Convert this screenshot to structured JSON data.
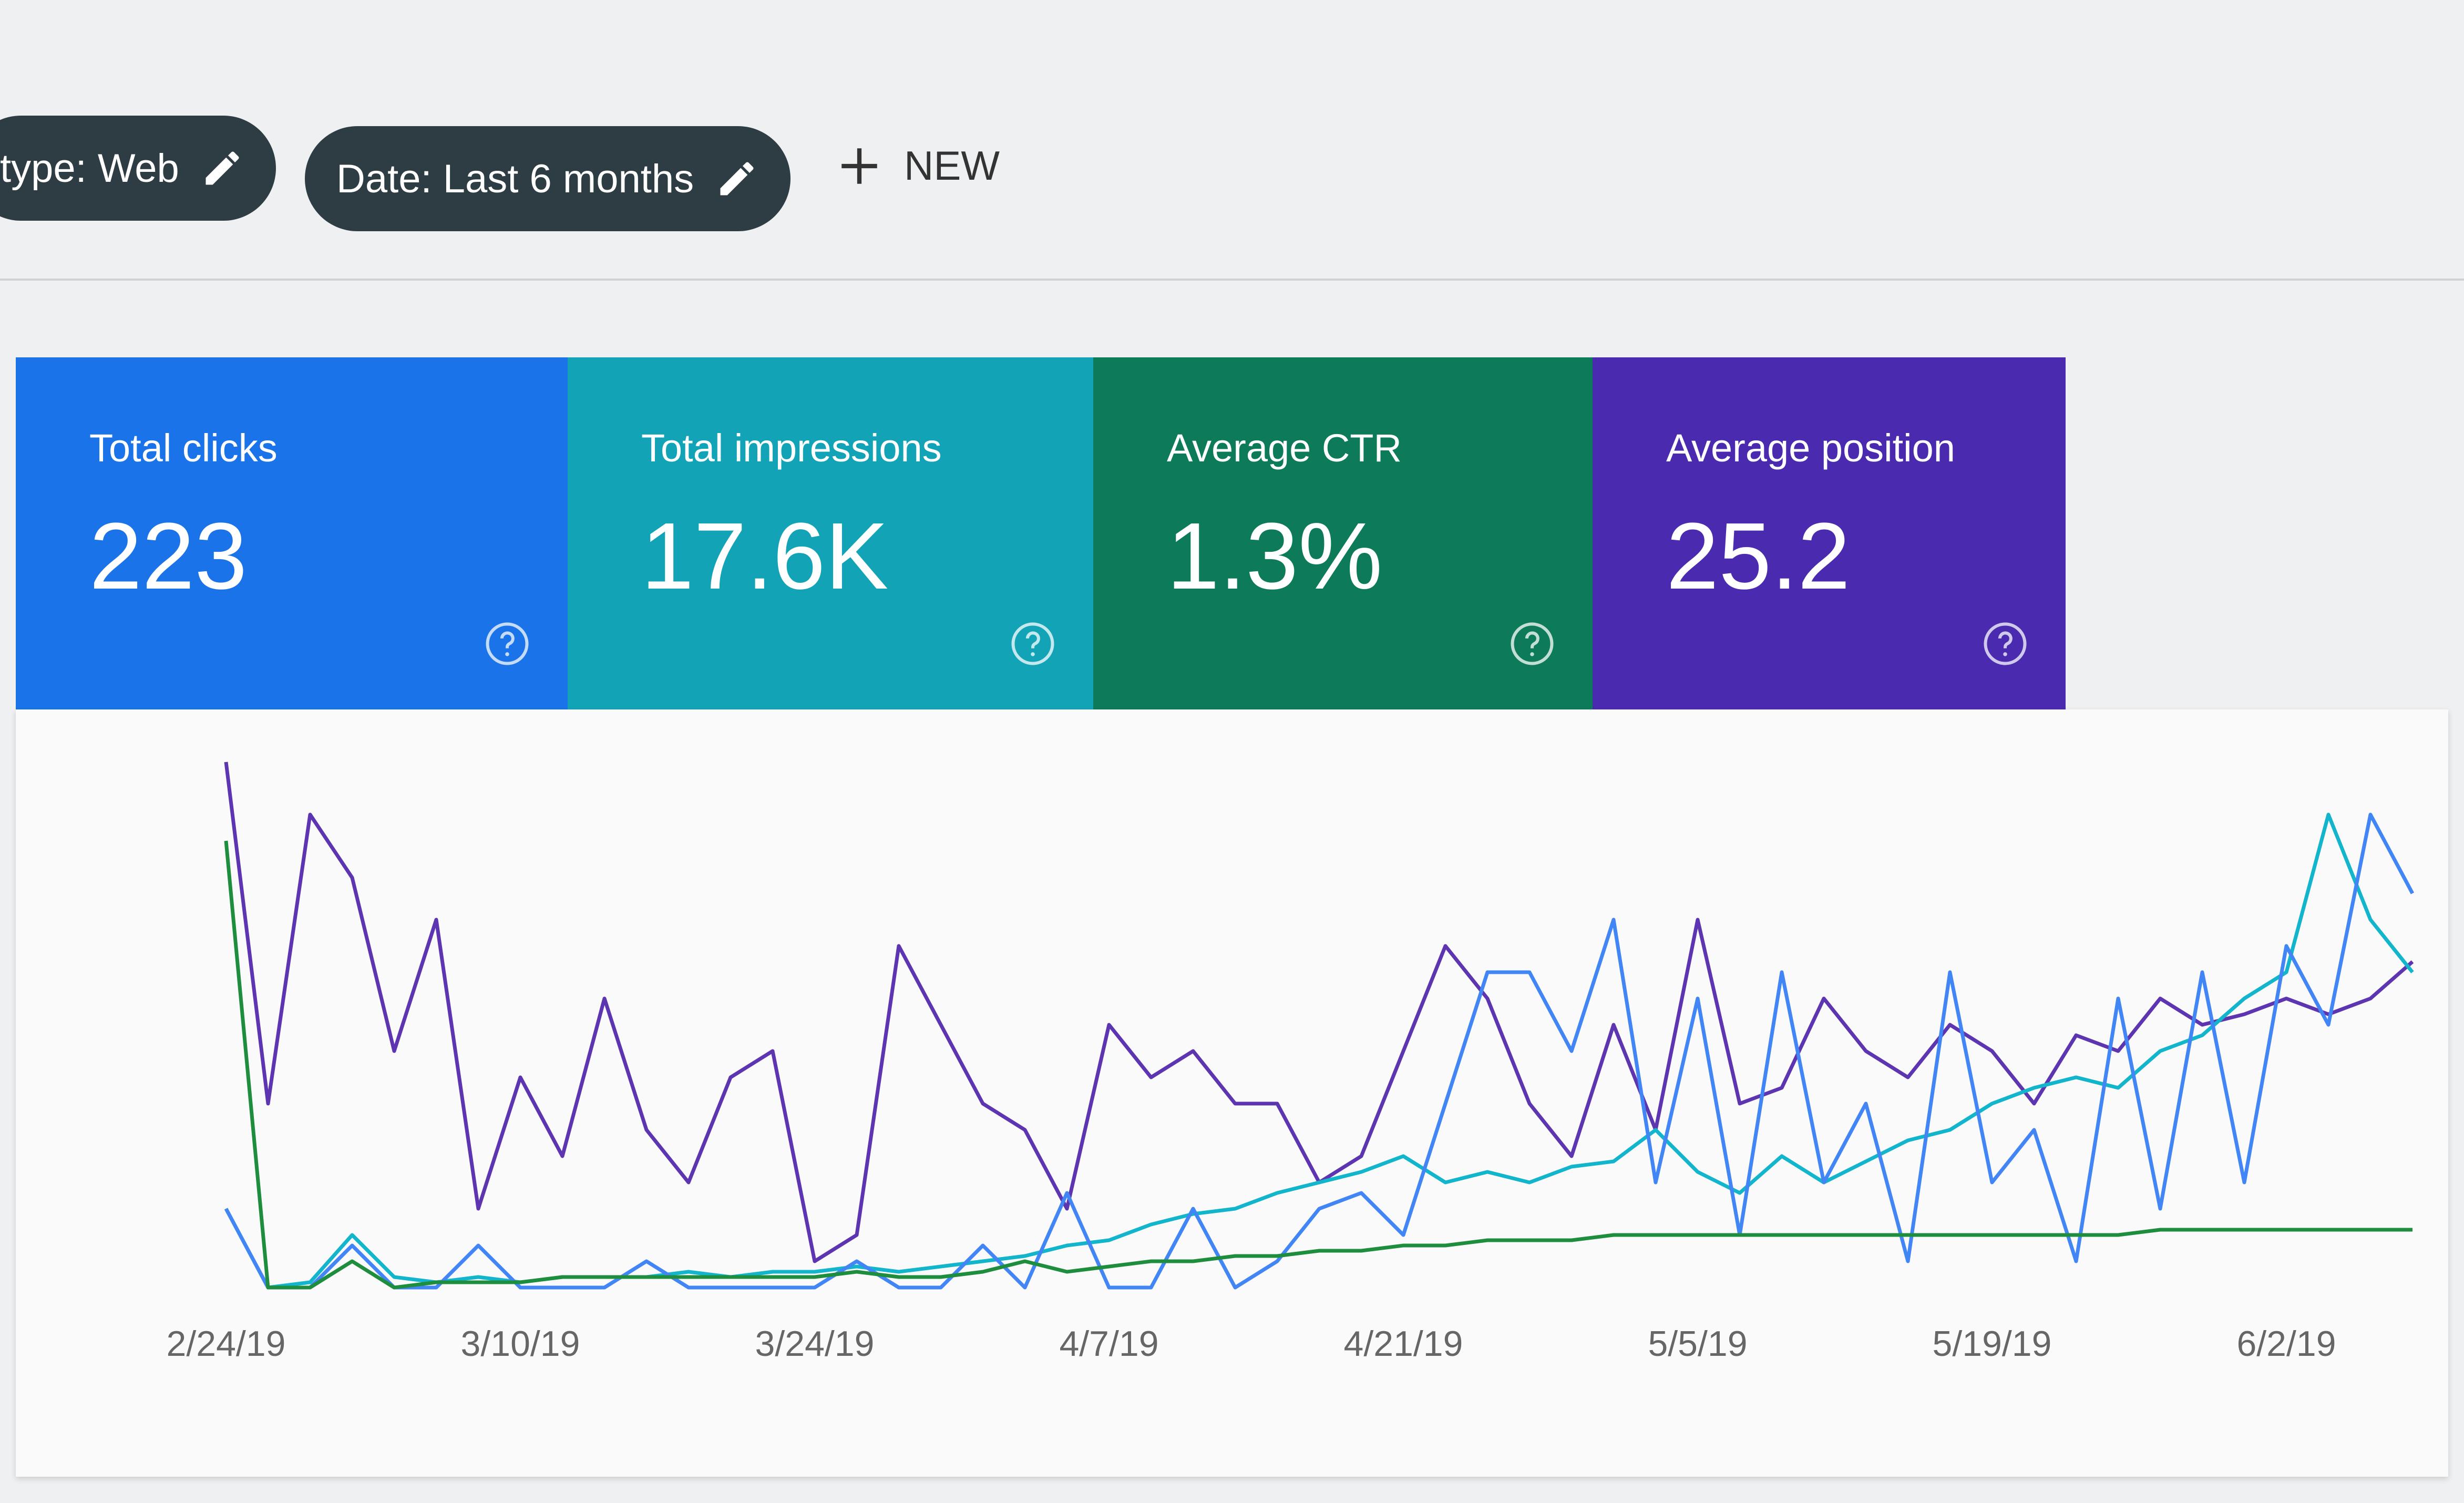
{
  "filters": {
    "chips": [
      "type: Web",
      "Date: Last 6 months"
    ],
    "new_button": "NEW"
  },
  "cards": [
    {
      "title": "Total clicks",
      "value": "223",
      "color": "#1a73e8"
    },
    {
      "title": "Total impressions",
      "value": "17.6K",
      "color": "#12a4b6"
    },
    {
      "title": "Average CTR",
      "value": "1.3%",
      "color": "#0d7b5a"
    },
    {
      "title": "Average position",
      "value": "25.2",
      "color": "#4a2bb0"
    }
  ],
  "chart_data": {
    "type": "line",
    "categories": [
      "2/24/19",
      null,
      null,
      null,
      null,
      null,
      null,
      "3/10/19",
      null,
      null,
      null,
      null,
      null,
      null,
      "3/24/19",
      null,
      null,
      null,
      null,
      null,
      null,
      "4/7/19",
      null,
      null,
      null,
      null,
      null,
      null,
      "4/21/19",
      null,
      null,
      null,
      null,
      null,
      null,
      "5/5/19",
      null,
      null,
      null,
      null,
      null,
      null,
      "5/19/19",
      null,
      null,
      null,
      null,
      null,
      null,
      "6/2/19",
      null,
      null,
      null
    ],
    "ylim": [
      0,
      100
    ],
    "series": [
      {
        "color": "#5e35b1",
        "values": [
          100,
          35,
          90,
          78,
          45,
          70,
          15,
          40,
          25,
          55,
          30,
          20,
          40,
          45,
          5,
          10,
          65,
          50,
          35,
          30,
          15,
          50,
          40,
          45,
          35,
          35,
          20,
          25,
          45,
          65,
          55,
          35,
          25,
          50,
          30,
          70,
          35,
          38,
          55,
          45,
          40,
          50,
          45,
          35,
          48,
          45,
          55,
          50,
          52,
          55,
          52,
          55,
          62
        ]
      },
      {
        "color": "#12b5cb",
        "values": [
          15,
          0,
          1,
          10,
          2,
          1,
          2,
          1,
          2,
          2,
          2,
          3,
          2,
          3,
          3,
          4,
          3,
          4,
          5,
          6,
          8,
          9,
          12,
          14,
          15,
          18,
          20,
          22,
          25,
          20,
          22,
          20,
          23,
          24,
          30,
          22,
          18,
          25,
          20,
          24,
          28,
          30,
          35,
          38,
          40,
          38,
          45,
          48,
          55,
          60,
          90,
          70,
          60
        ]
      },
      {
        "color": "#4285f4",
        "values": [
          15,
          0,
          0,
          8,
          0,
          0,
          8,
          0,
          0,
          0,
          5,
          0,
          0,
          0,
          0,
          5,
          0,
          0,
          8,
          0,
          18,
          0,
          0,
          15,
          0,
          5,
          15,
          18,
          10,
          35,
          60,
          60,
          45,
          70,
          20,
          55,
          10,
          60,
          20,
          35,
          5,
          60,
          20,
          30,
          5,
          55,
          15,
          60,
          20,
          65,
          50,
          90,
          75
        ]
      },
      {
        "color": "#1e8e3e",
        "values": [
          85,
          0,
          0,
          5,
          0,
          1,
          1,
          1,
          2,
          2,
          2,
          2,
          2,
          2,
          2,
          3,
          2,
          2,
          3,
          5,
          3,
          4,
          5,
          5,
          6,
          6,
          7,
          7,
          8,
          8,
          9,
          9,
          9,
          10,
          10,
          10,
          10,
          10,
          10,
          10,
          10,
          10,
          10,
          10,
          10,
          10,
          11,
          11,
          11,
          11,
          11,
          11,
          11
        ]
      }
    ]
  }
}
